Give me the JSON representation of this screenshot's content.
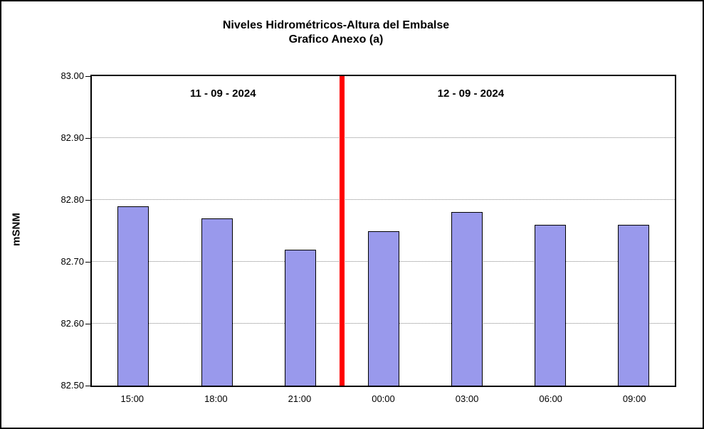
{
  "title": {
    "line1": "Niveles Hidrométricos-Altura del Embalse",
    "line2": "Grafico Anexo (a)"
  },
  "chart_data": {
    "type": "bar",
    "categories": [
      "15:00",
      "18:00",
      "21:00",
      "00:00",
      "03:00",
      "06:00",
      "09:00"
    ],
    "values": [
      82.79,
      82.77,
      82.72,
      82.75,
      82.78,
      82.76,
      82.76
    ],
    "title": "Niveles Hidrométricos-Altura del Embalse Grafico Anexo (a)",
    "xlabel": "",
    "ylabel": "mSNM",
    "ylim": [
      82.5,
      83.0
    ],
    "yticks": [
      82.5,
      82.6,
      82.7,
      82.8,
      82.9,
      83.0
    ],
    "ytick_labels": [
      "82.50",
      "82.60",
      "82.70",
      "82.80",
      "82.90",
      "83.00"
    ],
    "grid": "horizontal-dotted",
    "legend": "none",
    "divider_after_index": 2,
    "annotations": [
      {
        "label": "11 - 09 - 2024",
        "region": "left-of-divider"
      },
      {
        "label": "12 - 09 - 2024",
        "region": "right-of-divider"
      }
    ],
    "colors": {
      "bar_fill": "#9999EC",
      "bar_border": "#000000",
      "divider": "#FF0000",
      "plot_border": "#000000",
      "background": "#FFFFFF"
    }
  }
}
